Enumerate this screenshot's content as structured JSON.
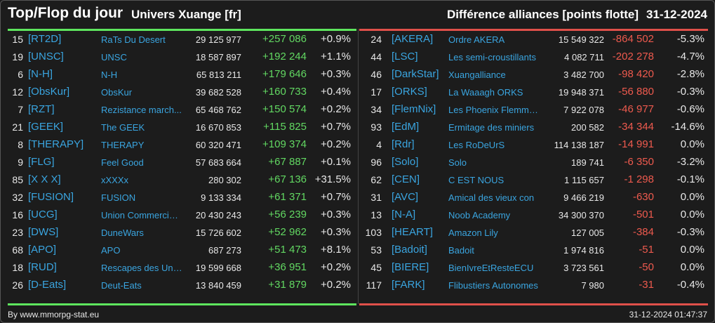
{
  "header": {
    "title": "Top/Flop du jour",
    "universe": "Univers Xuange [fr]",
    "subtitle": "Différence alliances [points flotte]",
    "date": "31-12-2024"
  },
  "colors": {
    "positive": "#62d862",
    "negative": "#ee5a4e",
    "link": "#3aa5e0",
    "top_rule": "#5ee65e",
    "flop_rule": "#e0504a"
  },
  "top": [
    {
      "rank": "15",
      "tag": "[RT2D]",
      "name": "RaTs Du Desert",
      "points": "29 125 977",
      "diff": "+257 086",
      "pct": "+0.9%"
    },
    {
      "rank": "19",
      "tag": "[UNSC]",
      "name": "UNSC",
      "points": "18 587 897",
      "diff": "+192 244",
      "pct": "+1.1%"
    },
    {
      "rank": "6",
      "tag": "[N-H]",
      "name": "N-H",
      "points": "65 813 211",
      "diff": "+179 646",
      "pct": "+0.3%"
    },
    {
      "rank": "12",
      "tag": "[ObsKur]",
      "name": "ObsKur",
      "points": "39 682 528",
      "diff": "+160 733",
      "pct": "+0.4%"
    },
    {
      "rank": "7",
      "tag": "[RZT]",
      "name": "Rezistance march...",
      "points": "65 468 762",
      "diff": "+150 574",
      "pct": "+0.2%"
    },
    {
      "rank": "21",
      "tag": "[GEEK]",
      "name": "The GEEK",
      "points": "16 670 853",
      "diff": "+115 825",
      "pct": "+0.7%"
    },
    {
      "rank": "8",
      "tag": "[THERAPY]",
      "name": "THERAPY",
      "points": "60 320 471",
      "diff": "+109 374",
      "pct": "+0.2%"
    },
    {
      "rank": "9",
      "tag": "[FLG]",
      "name": "Feel Good",
      "points": "57 683 664",
      "diff": "+67 887",
      "pct": "+0.1%"
    },
    {
      "rank": "85",
      "tag": "[X X X]",
      "name": "xXXXx",
      "points": "280 302",
      "diff": "+67 136",
      "pct": "+31.5%"
    },
    {
      "rank": "32",
      "tag": "[FUSION]",
      "name": "FUSION",
      "points": "9 133 334",
      "diff": "+61 371",
      "pct": "+0.7%"
    },
    {
      "rank": "16",
      "tag": "[UCG]",
      "name": "Union Commerciale...",
      "points": "20 430 243",
      "diff": "+56 239",
      "pct": "+0.3%"
    },
    {
      "rank": "23",
      "tag": "[DWS]",
      "name": "DuneWars",
      "points": "15 726 602",
      "diff": "+52 962",
      "pct": "+0.3%"
    },
    {
      "rank": "68",
      "tag": "[APO]",
      "name": "APO",
      "points": "687 273",
      "diff": "+51 473",
      "pct": "+8.1%"
    },
    {
      "rank": "18",
      "tag": "[RUD]",
      "name": "Rescapes des Univ...",
      "points": "19 599 668",
      "diff": "+36 951",
      "pct": "+0.2%"
    },
    {
      "rank": "26",
      "tag": "[D-Eats]",
      "name": "Deut-Eats",
      "points": "13 840 459",
      "diff": "+31 879",
      "pct": "+0.2%"
    }
  ],
  "flop": [
    {
      "rank": "24",
      "tag": "[AKERA]",
      "name": "Ordre AKERA",
      "points": "15 549 322",
      "diff": "-864 502",
      "pct": "-5.3%"
    },
    {
      "rank": "44",
      "tag": "[LSC]",
      "name": "Les semi-croustillants",
      "points": "4 082 711",
      "diff": "-202 278",
      "pct": "-4.7%"
    },
    {
      "rank": "46",
      "tag": "[DarkStar]",
      "name": "Xuangalliance",
      "points": "3 482 700",
      "diff": "-98 420",
      "pct": "-2.8%"
    },
    {
      "rank": "17",
      "tag": "[ORKS]",
      "name": "La Waaagh ORKS",
      "points": "19 948 371",
      "diff": "-56 880",
      "pct": "-0.3%"
    },
    {
      "rank": "34",
      "tag": "[FlemNix]",
      "name": "Les Phoenix Flemmards",
      "points": "7 922 078",
      "diff": "-46 977",
      "pct": "-0.6%"
    },
    {
      "rank": "93",
      "tag": "[EdM]",
      "name": "Ermitage des miniers",
      "points": "200 582",
      "diff": "-34 344",
      "pct": "-14.6%"
    },
    {
      "rank": "4",
      "tag": "[Rdr]",
      "name": "Les RoDeUrS",
      "points": "114 138 187",
      "diff": "-14 991",
      "pct": "0.0%"
    },
    {
      "rank": "96",
      "tag": "[Solo]",
      "name": "Solo",
      "points": "189 741",
      "diff": "-6 350",
      "pct": "-3.2%"
    },
    {
      "rank": "62",
      "tag": "[CEN]",
      "name": "C EST NOUS",
      "points": "1 115 657",
      "diff": "-1 298",
      "pct": "-0.1%"
    },
    {
      "rank": "31",
      "tag": "[AVC]",
      "name": "Amical des vieux con",
      "points": "9 466 219",
      "diff": "-630",
      "pct": "0.0%"
    },
    {
      "rank": "13",
      "tag": "[N-A]",
      "name": "Noob Academy",
      "points": "34 300 370",
      "diff": "-501",
      "pct": "0.0%"
    },
    {
      "rank": "103",
      "tag": "[HEART]",
      "name": "Amazon Lily",
      "points": "127 005",
      "diff": "-384",
      "pct": "-0.3%"
    },
    {
      "rank": "53",
      "tag": "[Badoit]",
      "name": "Badoit",
      "points": "1 974 816",
      "diff": "-51",
      "pct": "0.0%"
    },
    {
      "rank": "45",
      "tag": "[BIERE]",
      "name": "BienIvreEtResteECU",
      "points": "3 723 561",
      "diff": "-50",
      "pct": "0.0%"
    },
    {
      "rank": "117",
      "tag": "[FARK]",
      "name": "Flibustiers Autonomes",
      "points": "7 980",
      "diff": "-31",
      "pct": "-0.4%"
    }
  ],
  "footer": {
    "source": "By www.mmorpg-stat.eu",
    "timestamp": "31-12-2024 01:47:37"
  }
}
